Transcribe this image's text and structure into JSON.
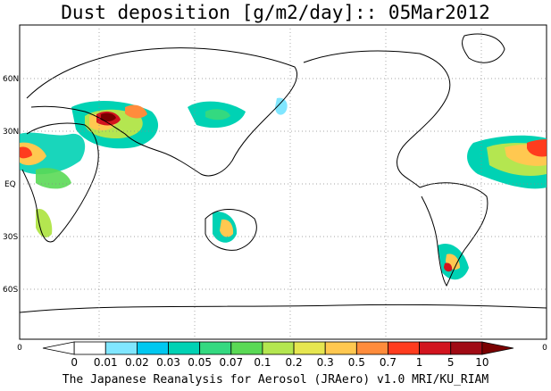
{
  "title": "Dust deposition [g/m2/day]:: 05Mar2012",
  "footer": "The Japanese Reanalysis for Aerosol (JRAero) v1.0 MRI/KU_RIAM",
  "lat_labels": [
    "60N",
    "30N",
    "EQ",
    "30S",
    "60S"
  ],
  "edge_left": "0",
  "edge_right": "0",
  "colorbar": {
    "labels": [
      "0",
      "0.01",
      "0.02",
      "0.03",
      "0.05",
      "0.07",
      "0.1",
      "0.2",
      "0.3",
      "0.5",
      "0.7",
      "1",
      "5",
      "10"
    ],
    "colors": [
      "#ffffff",
      "#ffffff",
      "#80e6ff",
      "#00c8f0",
      "#00d2b4",
      "#34d980",
      "#5ad955",
      "#b4e650",
      "#e6e650",
      "#ffc850",
      "#ff8c3c",
      "#ff3c1e",
      "#d2141e",
      "#a00a14",
      "#7a0000"
    ]
  }
}
